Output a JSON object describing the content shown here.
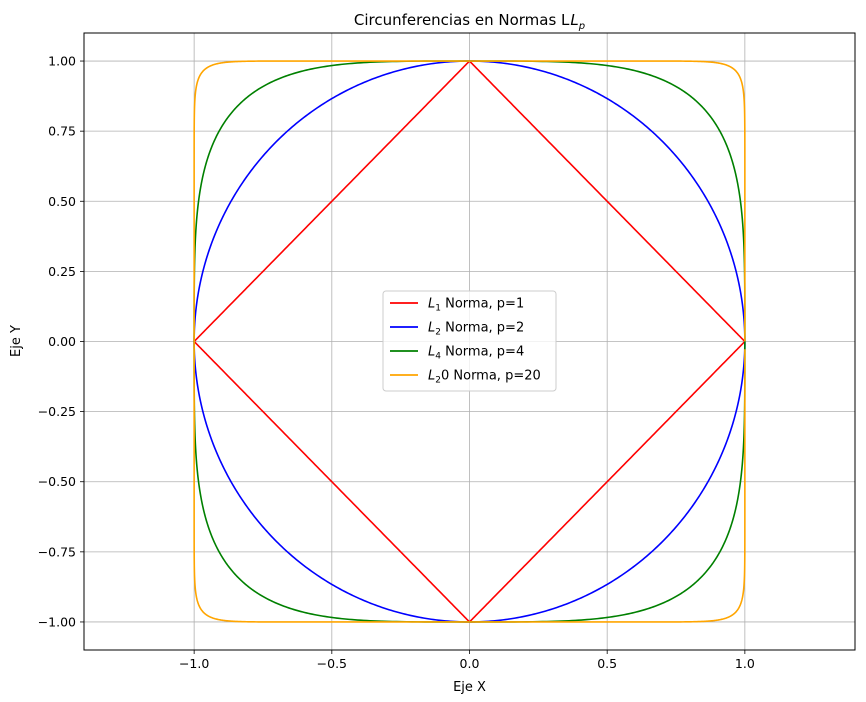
{
  "chart_data": {
    "type": "line",
    "title": "Circunferencias en Normas L",
    "title_subscript": "p",
    "xlabel": "Eje X",
    "ylabel": "Eje Y",
    "xlim": [
      -1.4,
      1.4
    ],
    "ylim": [
      -1.1,
      1.1
    ],
    "x_ticks": [
      -1.0,
      -0.5,
      0.0,
      0.5,
      1.0
    ],
    "x_tick_labels": [
      "−1.0",
      "−0.5",
      "0.0",
      "0.5",
      "1.0"
    ],
    "y_ticks": [
      -1.0,
      -0.75,
      -0.5,
      -0.25,
      0.0,
      0.25,
      0.5,
      0.75,
      1.0
    ],
    "y_tick_labels": [
      "−1.00",
      "−0.75",
      "−0.50",
      "−0.25",
      "0.00",
      "0.25",
      "0.50",
      "0.75",
      "1.00"
    ],
    "grid": true,
    "legend_position": "center",
    "curve": "unit circle |x|^p + |y|^p = 1",
    "series": [
      {
        "name": "L1 Norma, p=1",
        "legend_main": "L",
        "legend_sub": "1",
        "legend_rest": " Norma, p=1",
        "p": 1,
        "color": "#ff0000"
      },
      {
        "name": "L2 Norma, p=2",
        "legend_main": "L",
        "legend_sub": "2",
        "legend_rest": " Norma, p=2",
        "p": 2,
        "color": "#0000ff"
      },
      {
        "name": "L4 Norma, p=4",
        "legend_main": "L",
        "legend_sub": "4",
        "legend_rest": " Norma, p=4",
        "p": 4,
        "color": "#008000"
      },
      {
        "name": "L20 Norma, p=20",
        "legend_main": "L",
        "legend_sub": "2",
        "legend_rest": "0 Norma, p=20",
        "p": 20,
        "color": "#ffa500"
      }
    ]
  }
}
